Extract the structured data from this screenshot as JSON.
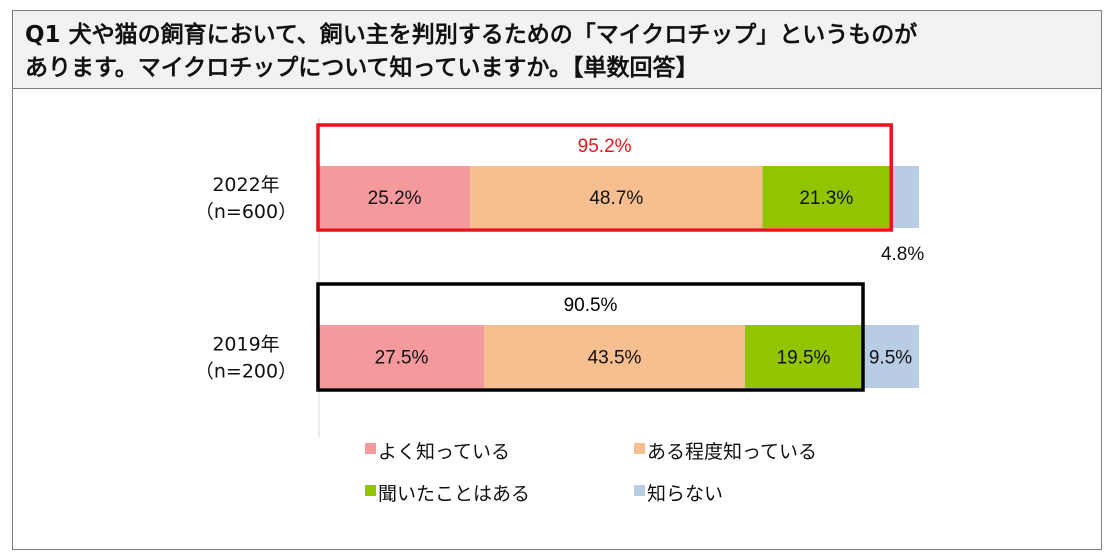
{
  "question": {
    "line1": "Q1 犬や猫の飼育において、飼い主を判別するための「マイクロチップ」というものが",
    "line2": "あります。マイクロチップについて知っていますか。【単数回答】"
  },
  "chart_data": {
    "type": "bar",
    "orientation": "horizontal",
    "stacked": true,
    "categories": [
      {
        "year": "2022年",
        "n": "（n=600）"
      },
      {
        "year": "2019年",
        "n": "（n=200）"
      }
    ],
    "series": [
      {
        "name": "よく知っている",
        "color": "#f4999c",
        "values": [
          25.2,
          27.5
        ]
      },
      {
        "name": "ある程度知っている",
        "color": "#f7bf90",
        "values": [
          48.7,
          43.5
        ]
      },
      {
        "name": "聞いたことはある",
        "color": "#92c500",
        "values": [
          21.3,
          19.5
        ]
      },
      {
        "name": "知らない",
        "color": "#b8cce4",
        "values": [
          4.8,
          9.5
        ]
      }
    ],
    "value_labels": [
      [
        "25.2%",
        "48.7%",
        "21.3%",
        "4.8%"
      ],
      [
        "27.5%",
        "43.5%",
        "19.5%",
        "9.5%"
      ]
    ],
    "totals": [
      {
        "label": "95.2%",
        "color": "#e8141c"
      },
      {
        "label": "90.5%",
        "color": "#000000"
      }
    ],
    "xlim": [
      0,
      100
    ],
    "legend_position": "bottom"
  }
}
